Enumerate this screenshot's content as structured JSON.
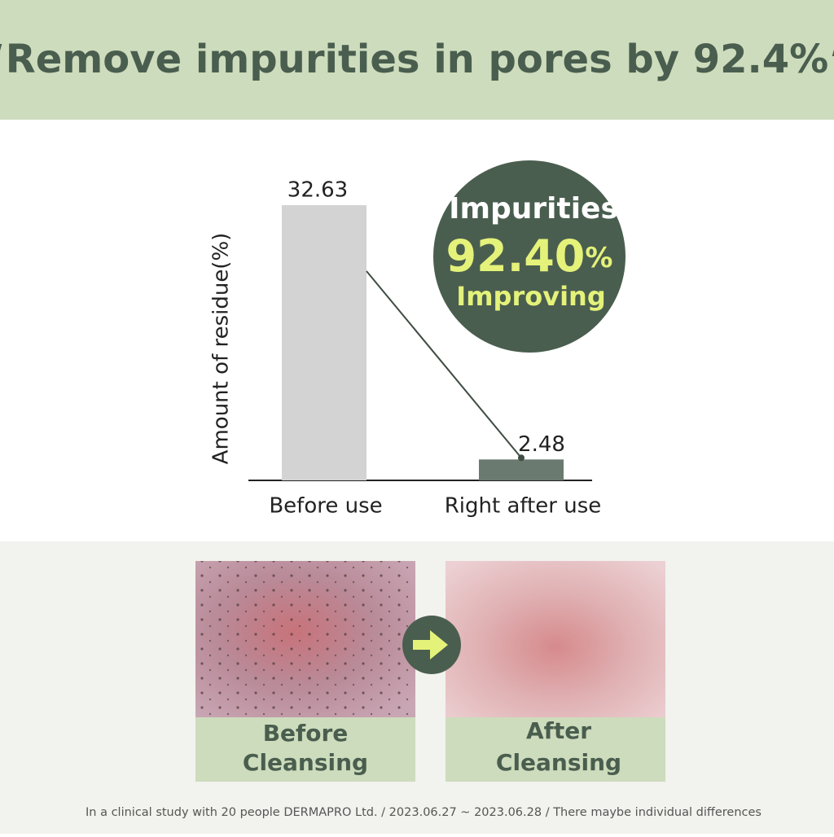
{
  "header": {
    "title": "“Remove impurities in pores by 92.4%”"
  },
  "chart_data": {
    "type": "bar",
    "y_label": "Amount of residue(%)",
    "categories": [
      "Before use",
      "Right after use"
    ],
    "values": [
      32.63,
      2.48
    ],
    "colors": [
      "#d3d3d3",
      "#6b7a70"
    ]
  },
  "badge": {
    "title": "Impurities",
    "value": "92.40",
    "unit": "%",
    "caption": "Improving"
  },
  "photos": [
    {
      "label_line1": "Before",
      "label_line2": "Cleansing"
    },
    {
      "label_line1": "After",
      "label_line2": "Cleansing"
    }
  ],
  "footnote": "In a clinical study with 20 people DERMAPRO Ltd. / 2023.06.27 ~ 2023.06.28 / There maybe individual differences"
}
